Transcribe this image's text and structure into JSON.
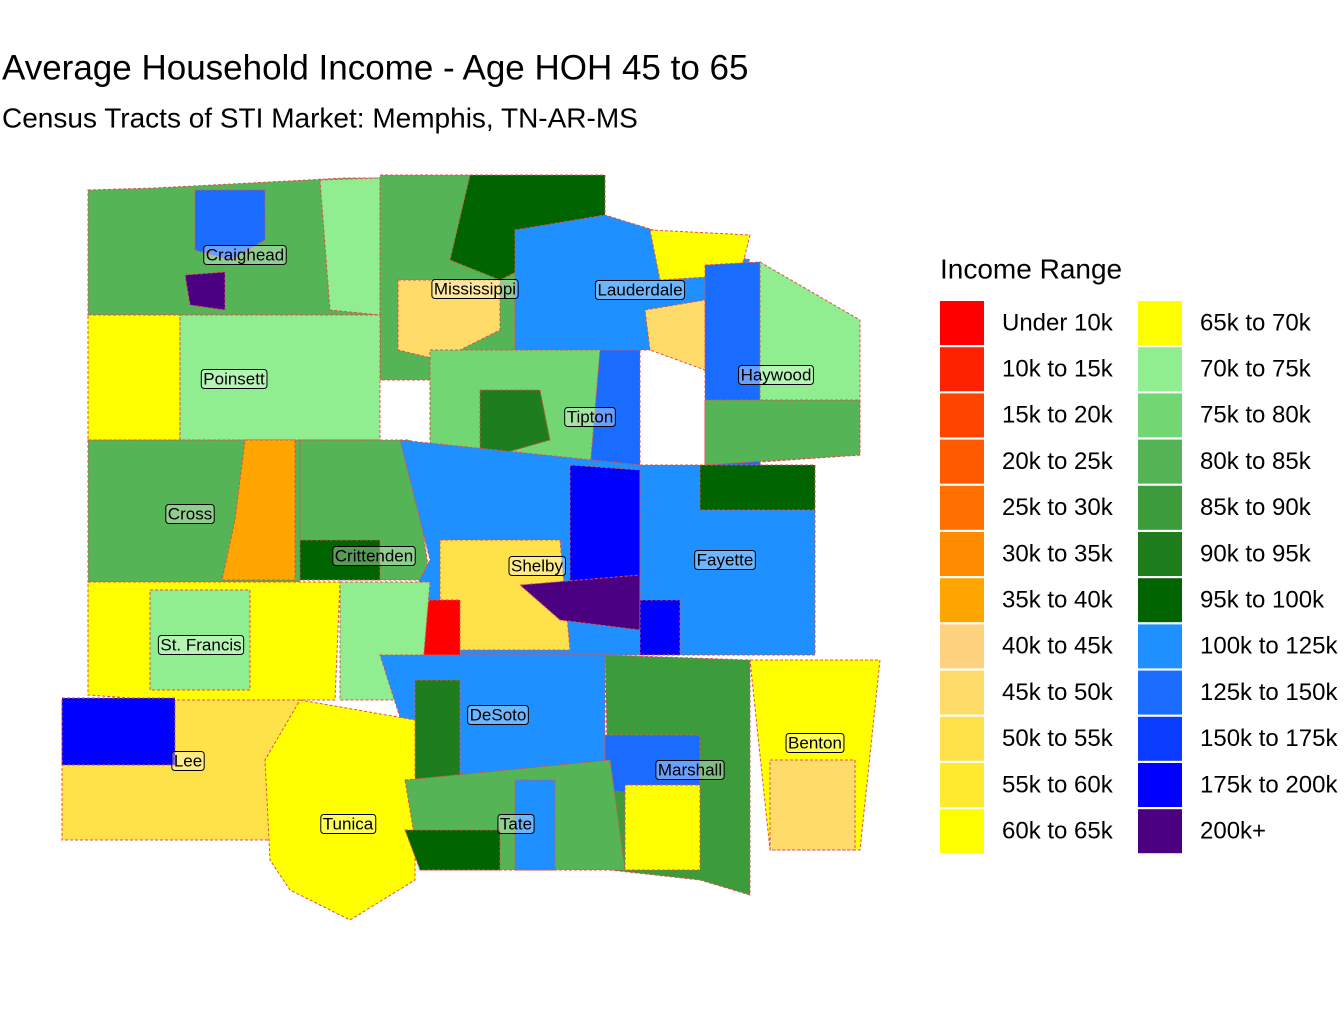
{
  "title": "Average Household Income - Age HOH 45 to 65",
  "subtitle": "Census Tracts of STI Market: Memphis, TN-AR-MS",
  "legend": {
    "title": "Income Range",
    "items": [
      {
        "label": "Under 10k",
        "color": "#ff0000"
      },
      {
        "label": "10k to 15k",
        "color": "#ff2200"
      },
      {
        "label": "15k to 20k",
        "color": "#ff4400"
      },
      {
        "label": "20k to 25k",
        "color": "#ff5a00"
      },
      {
        "label": "25k to 30k",
        "color": "#ff7000"
      },
      {
        "label": "30k to 35k",
        "color": "#ff8c00"
      },
      {
        "label": "35k to 40k",
        "color": "#ffa500"
      },
      {
        "label": "40k to 45k",
        "color": "#ffd27f"
      },
      {
        "label": "45k to 50k",
        "color": "#ffdb6a"
      },
      {
        "label": "50k to 55k",
        "color": "#ffe24a"
      },
      {
        "label": "55k to 60k",
        "color": "#ffea30"
      },
      {
        "label": "60k to 65k",
        "color": "#ffff00"
      },
      {
        "label": "65k to 70k",
        "color": "#ffff00"
      },
      {
        "label": "70k to 75k",
        "color": "#90ee90"
      },
      {
        "label": "75k to 80k",
        "color": "#72d672"
      },
      {
        "label": "80k to 85k",
        "color": "#55b455"
      },
      {
        "label": "85k to 90k",
        "color": "#3c9c3c"
      },
      {
        "label": "90k to 95k",
        "color": "#1e7e1e"
      },
      {
        "label": "95k to 100k",
        "color": "#006400"
      },
      {
        "label": "100k to 125k",
        "color": "#1e90ff"
      },
      {
        "label": "125k to 150k",
        "color": "#1a6cff"
      },
      {
        "label": "150k to 175k",
        "color": "#0a3cff"
      },
      {
        "label": "175k to 200k",
        "color": "#0000ff"
      },
      {
        "label": "200k+",
        "color": "#4b0082"
      }
    ]
  },
  "counties": [
    {
      "name": "Craighead"
    },
    {
      "name": "Mississippi"
    },
    {
      "name": "Lauderdale"
    },
    {
      "name": "Poinsett"
    },
    {
      "name": "Haywood"
    },
    {
      "name": "Tipton"
    },
    {
      "name": "Cross"
    },
    {
      "name": "Crittenden"
    },
    {
      "name": "Shelby"
    },
    {
      "name": "Fayette"
    },
    {
      "name": "St. Francis"
    },
    {
      "name": "DeSoto"
    },
    {
      "name": "Benton"
    },
    {
      "name": "Lee"
    },
    {
      "name": "Marshall"
    },
    {
      "name": "Tunica"
    },
    {
      "name": "Tate"
    }
  ]
}
